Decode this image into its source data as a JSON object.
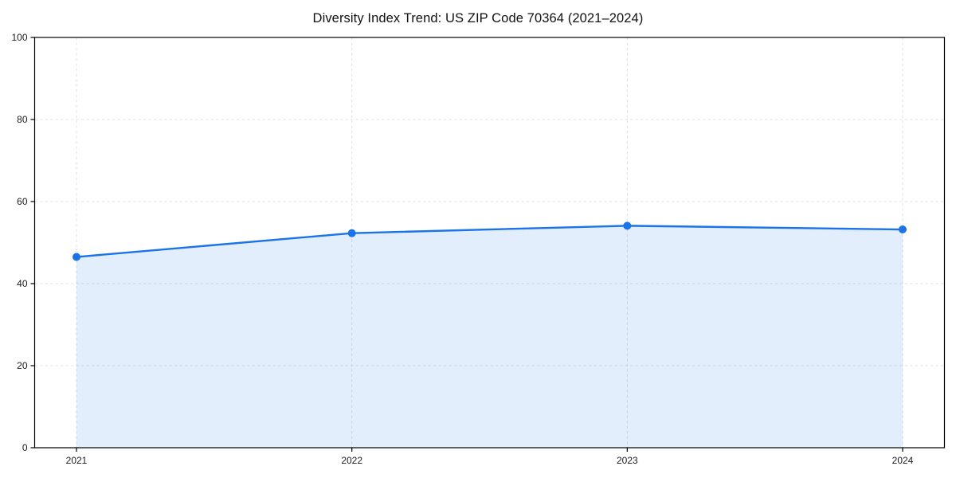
{
  "chart_data": {
    "type": "line",
    "title": "Diversity Index Trend: US ZIP Code 70364 (2021–2024)",
    "series_name": "Diversity Index",
    "x": [
      "2021",
      "2022",
      "2023",
      "2024"
    ],
    "values": [
      46.5,
      52.3,
      54.1,
      53.2
    ],
    "xlabel": "",
    "ylabel": "",
    "ylim": [
      0,
      100
    ],
    "yticks": [
      0,
      20,
      40,
      60,
      80,
      100
    ],
    "xticks": [
      "2021",
      "2022",
      "2023",
      "2024"
    ],
    "grid": true,
    "grid_style": "dashed",
    "legend_position": "none",
    "area_fill": true,
    "marker": "circle",
    "colors": {
      "line": "#1a73e8",
      "marker": "#1a73e8",
      "area": "rgba(26,115,232,0.12)",
      "grid": "#e1e1e1",
      "spine": "#000000",
      "tick_text": "#1a1a1a",
      "title_text": "#111111",
      "background": "#ffffff"
    }
  }
}
